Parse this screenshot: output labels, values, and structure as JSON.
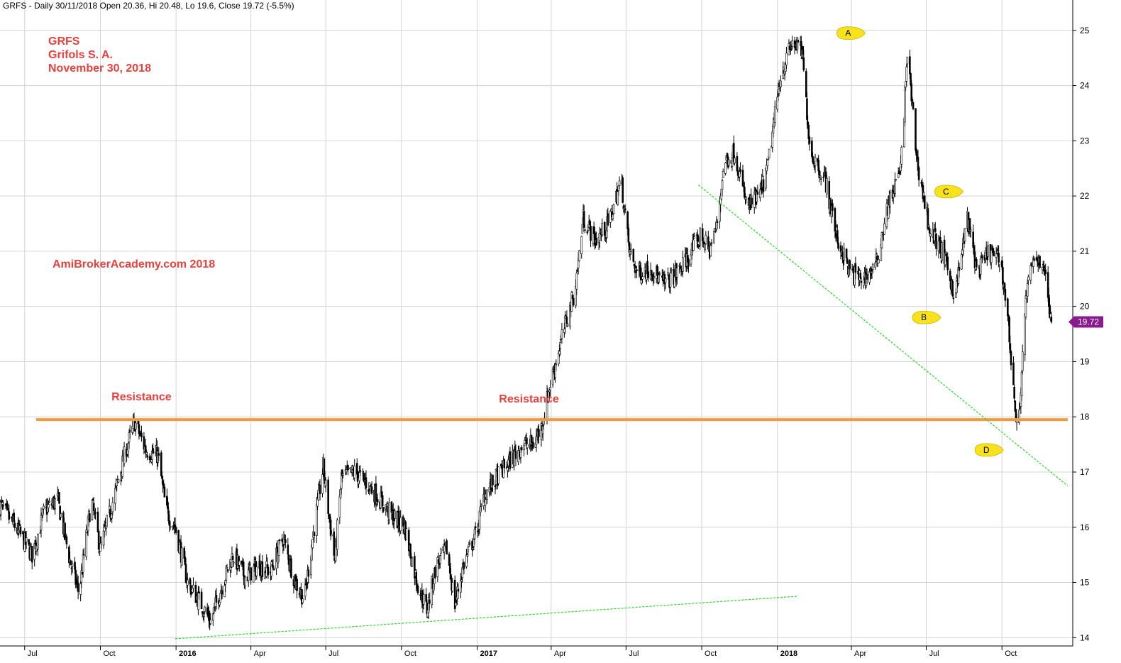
{
  "header": "GRFS - Daily 30/11/2018 Open 20.36, Hi 20.48, Lo 19.6, Close 19.72 (-5.5%)",
  "title_lines": [
    "GRFS",
    "Grifols S. A.",
    "November 30, 2018"
  ],
  "watermark": "AmiBrokerAcademy.com  2018",
  "colors": {
    "price": "#000000",
    "resistance": "#f59a3c",
    "trendline": "#22dd22",
    "text_accent": "#e8413c",
    "marker": "#f7e21b",
    "last_price_bg": "#8a1a8f"
  },
  "chart_data": {
    "type": "candlestick",
    "symbol": "GRFS",
    "interval": "Daily",
    "last_bar": {
      "date": "30/11/2018",
      "open": 20.36,
      "high": 20.48,
      "low": 19.6,
      "close": 19.72,
      "change_pct": -5.5
    },
    "ylim": [
      13.85,
      25.55
    ],
    "yticks": [
      14,
      15,
      16,
      17,
      18,
      19,
      20,
      21,
      22,
      23,
      24,
      25
    ],
    "xlim": [
      "2015-06-01",
      "2018-12-20"
    ],
    "xticks": [
      {
        "date": "2015-07-01",
        "label": "Jul",
        "year": false
      },
      {
        "date": "2015-10-01",
        "label": "Oct",
        "year": false
      },
      {
        "date": "2016-01-01",
        "label": "2016",
        "year": true
      },
      {
        "date": "2016-04-01",
        "label": "Apr",
        "year": false
      },
      {
        "date": "2016-07-01",
        "label": "Jul",
        "year": false
      },
      {
        "date": "2016-10-01",
        "label": "Oct",
        "year": false
      },
      {
        "date": "2017-01-01",
        "label": "2017",
        "year": true
      },
      {
        "date": "2017-04-01",
        "label": "Apr",
        "year": false
      },
      {
        "date": "2017-07-01",
        "label": "Jul",
        "year": false
      },
      {
        "date": "2017-10-01",
        "label": "Oct",
        "year": false
      },
      {
        "date": "2018-01-01",
        "label": "2018",
        "year": true
      },
      {
        "date": "2018-04-01",
        "label": "Apr",
        "year": false
      },
      {
        "date": "2018-07-01",
        "label": "Jul",
        "year": false
      },
      {
        "date": "2018-10-01",
        "label": "Oct",
        "year": false
      }
    ],
    "grid": true,
    "price_path": [
      [
        "2015-06-01",
        16.4
      ],
      [
        "2015-06-20",
        16.0
      ],
      [
        "2015-07-10",
        15.5
      ],
      [
        "2015-07-25",
        16.3
      ],
      [
        "2015-08-10",
        16.5
      ],
      [
        "2015-08-25",
        15.4
      ],
      [
        "2015-09-05",
        14.8
      ],
      [
        "2015-09-20",
        16.5
      ],
      [
        "2015-10-01",
        15.6
      ],
      [
        "2015-10-15",
        16.4
      ],
      [
        "2015-11-01",
        17.4
      ],
      [
        "2015-11-12",
        17.9
      ],
      [
        "2015-11-25",
        17.4
      ],
      [
        "2015-12-10",
        17.3
      ],
      [
        "2015-12-20",
        16.3
      ],
      [
        "2015-12-31",
        16.0
      ],
      [
        "2016-01-15",
        15.0
      ],
      [
        "2016-02-01",
        14.6
      ],
      [
        "2016-02-12",
        14.3
      ],
      [
        "2016-02-25",
        14.9
      ],
      [
        "2016-03-10",
        15.5
      ],
      [
        "2016-03-25",
        15.1
      ],
      [
        "2016-04-10",
        15.3
      ],
      [
        "2016-04-25",
        15.2
      ],
      [
        "2016-05-10",
        15.8
      ],
      [
        "2016-05-25",
        15.0
      ],
      [
        "2016-06-05",
        14.7
      ],
      [
        "2016-06-15",
        15.8
      ],
      [
        "2016-06-28",
        17.1
      ],
      [
        "2016-07-05",
        16.2
      ],
      [
        "2016-07-12",
        15.4
      ],
      [
        "2016-07-20",
        16.9
      ],
      [
        "2016-08-05",
        17.0
      ],
      [
        "2016-08-20",
        16.8
      ],
      [
        "2016-09-05",
        16.5
      ],
      [
        "2016-09-20",
        16.2
      ],
      [
        "2016-10-05",
        16.0
      ],
      [
        "2016-10-20",
        15.0
      ],
      [
        "2016-11-01",
        14.5
      ],
      [
        "2016-11-12",
        15.3
      ],
      [
        "2016-11-25",
        15.6
      ],
      [
        "2016-12-05",
        14.6
      ],
      [
        "2016-12-15",
        15.3
      ],
      [
        "2016-12-31",
        15.9
      ],
      [
        "2017-01-10",
        16.6
      ],
      [
        "2017-01-25",
        16.9
      ],
      [
        "2017-02-10",
        17.2
      ],
      [
        "2017-02-25",
        17.5
      ],
      [
        "2017-03-10",
        17.5
      ],
      [
        "2017-03-20",
        17.8
      ],
      [
        "2017-03-31",
        18.6
      ],
      [
        "2017-04-15",
        19.5
      ],
      [
        "2017-04-30",
        20.3
      ],
      [
        "2017-05-10",
        21.6
      ],
      [
        "2017-05-25",
        21.2
      ],
      [
        "2017-06-10",
        21.5
      ],
      [
        "2017-06-25",
        22.3
      ],
      [
        "2017-07-05",
        21.0
      ],
      [
        "2017-07-15",
        20.6
      ],
      [
        "2017-08-01",
        20.7
      ],
      [
        "2017-08-15",
        20.4
      ],
      [
        "2017-09-01",
        20.6
      ],
      [
        "2017-09-15",
        20.9
      ],
      [
        "2017-09-30",
        21.3
      ],
      [
        "2017-10-10",
        21.0
      ],
      [
        "2017-10-20",
        21.5
      ],
      [
        "2017-10-28",
        22.6
      ],
      [
        "2017-11-10",
        22.8
      ],
      [
        "2017-11-25",
        21.8
      ],
      [
        "2017-12-10",
        22.0
      ],
      [
        "2017-12-20",
        22.5
      ],
      [
        "2018-01-05",
        24.2
      ],
      [
        "2018-01-20",
        24.8
      ],
      [
        "2018-01-31",
        24.6
      ],
      [
        "2018-02-10",
        22.8
      ],
      [
        "2018-02-28",
        22.3
      ],
      [
        "2018-03-15",
        21.2
      ],
      [
        "2018-03-31",
        20.6
      ],
      [
        "2018-04-15",
        20.5
      ],
      [
        "2018-04-30",
        20.7
      ],
      [
        "2018-05-15",
        21.8
      ],
      [
        "2018-05-31",
        22.5
      ],
      [
        "2018-06-08",
        24.6
      ],
      [
        "2018-06-20",
        22.6
      ],
      [
        "2018-07-05",
        21.4
      ],
      [
        "2018-07-20",
        21.0
      ],
      [
        "2018-08-05",
        20.2
      ],
      [
        "2018-08-20",
        21.6
      ],
      [
        "2018-09-01",
        20.6
      ],
      [
        "2018-09-15",
        21.0
      ],
      [
        "2018-09-30",
        20.8
      ],
      [
        "2018-10-08",
        19.8
      ],
      [
        "2018-10-20",
        17.6
      ],
      [
        "2018-10-31",
        20.3
      ],
      [
        "2018-11-10",
        20.9
      ],
      [
        "2018-11-20",
        20.8
      ],
      [
        "2018-11-30",
        19.72
      ]
    ],
    "support_line": {
      "from": [
        "2015-12-31",
        13.98
      ],
      "to": [
        "2018-01-25",
        14.75
      ]
    },
    "descending_trendline": {
      "from": [
        "2017-09-27",
        22.2
      ],
      "to": [
        "2018-12-20",
        16.75
      ]
    },
    "resistance_level": {
      "y": 17.95,
      "from": "2015-07-15",
      "to": "2018-12-20"
    },
    "annotations": [
      {
        "text": "Resistance",
        "date": "2015-11-20",
        "y": 18.3
      },
      {
        "text": "Resistance",
        "date": "2017-03-05",
        "y": 18.26
      }
    ],
    "markers": [
      {
        "label": "A",
        "date": "2018-03-28",
        "y": 24.95
      },
      {
        "label": "B",
        "date": "2018-06-28",
        "y": 19.8
      },
      {
        "label": "C",
        "date": "2018-07-25",
        "y": 22.08
      },
      {
        "label": "D",
        "date": "2018-09-12",
        "y": 17.4
      }
    ],
    "last_price_label": "19.72"
  }
}
